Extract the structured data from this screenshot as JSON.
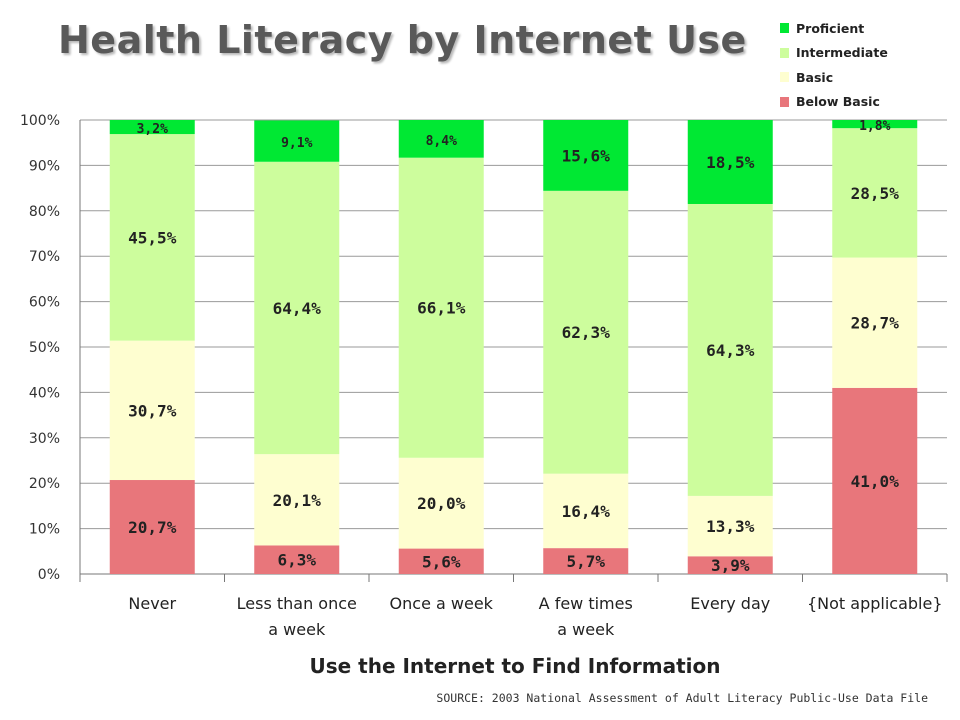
{
  "title": "Health Literacy by Internet Use",
  "source": "SOURCE: 2003 National Assessment of Adult Literacy Public-Use Data File",
  "colors": {
    "Below Basic": "#e8767b",
    "Basic": "#fefed0",
    "Intermediate": "#cdfd9d",
    "Proficient": "#00e833",
    "grid": "#9a9a9a"
  },
  "chart_data": {
    "type": "bar",
    "stacked": true,
    "title": "Health Literacy by Internet Use",
    "xlabel": "Use the Internet to Find Information",
    "ylabel": "",
    "ylim": [
      0,
      100
    ],
    "yticks": [
      "0%",
      "10%",
      "20%",
      "30%",
      "40%",
      "50%",
      "60%",
      "70%",
      "80%",
      "90%",
      "100%"
    ],
    "grid": true,
    "legend_position": "top-right",
    "categories": [
      "Never",
      "Less than once a week",
      "Once a week",
      "A few times a week",
      "Every day",
      "{Not applicable}"
    ],
    "series": [
      {
        "name": "Below Basic",
        "values": [
          20.7,
          6.3,
          5.6,
          5.7,
          3.9,
          41.0
        ],
        "labels": [
          "20,7%",
          "6,3%",
          "5,6%",
          "5,7%",
          "3,9%",
          "41,0%"
        ]
      },
      {
        "name": "Basic",
        "values": [
          30.7,
          20.1,
          20.0,
          16.4,
          13.3,
          28.7
        ],
        "labels": [
          "30,7%",
          "20,1%",
          "20,0%",
          "16,4%",
          "13,3%",
          "28,7%"
        ]
      },
      {
        "name": "Intermediate",
        "values": [
          45.5,
          64.4,
          66.1,
          62.3,
          64.3,
          28.5
        ],
        "labels": [
          "45,5%",
          "64,4%",
          "66,1%",
          "62,3%",
          "64,3%",
          "28,5%"
        ]
      },
      {
        "name": "Proficient",
        "values": [
          3.2,
          9.1,
          8.4,
          15.6,
          18.5,
          1.8
        ],
        "labels": [
          "3,2%",
          "9,1%",
          "8,4%",
          "15,6%",
          "18,5%",
          "1,8%"
        ]
      }
    ]
  }
}
